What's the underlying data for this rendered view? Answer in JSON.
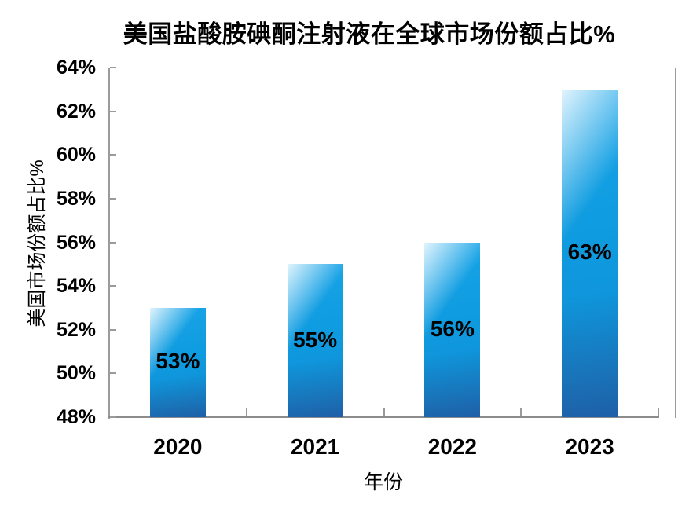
{
  "chart_data": {
    "type": "bar",
    "title": "美国盐酸胺碘酮注射液在全球市场份额占比%",
    "categories": [
      "2020",
      "2021",
      "2022",
      "2023"
    ],
    "values": [
      53,
      55,
      56,
      63
    ],
    "data_labels": [
      "53%",
      "55%",
      "56%",
      "63%"
    ],
    "xlabel": "年份",
    "ylabel": "美国市场份额占比%",
    "ylim": [
      48,
      64
    ],
    "ytick_step": 2,
    "ytick_labels": [
      "64%",
      "62%",
      "60%",
      "58%",
      "56%",
      "54%",
      "52%",
      "50%",
      "48%"
    ],
    "grid": false,
    "legend_position": "none",
    "data_label_position": "inside-center",
    "styles": {
      "bar_highlight": "#E9F7FE",
      "bar_main": "#0F9BDF",
      "bar_bottom": "#1E5FA8",
      "axis_color": "#9B9B9B",
      "text_color": "#000000",
      "background": "#FFFFFF"
    }
  }
}
